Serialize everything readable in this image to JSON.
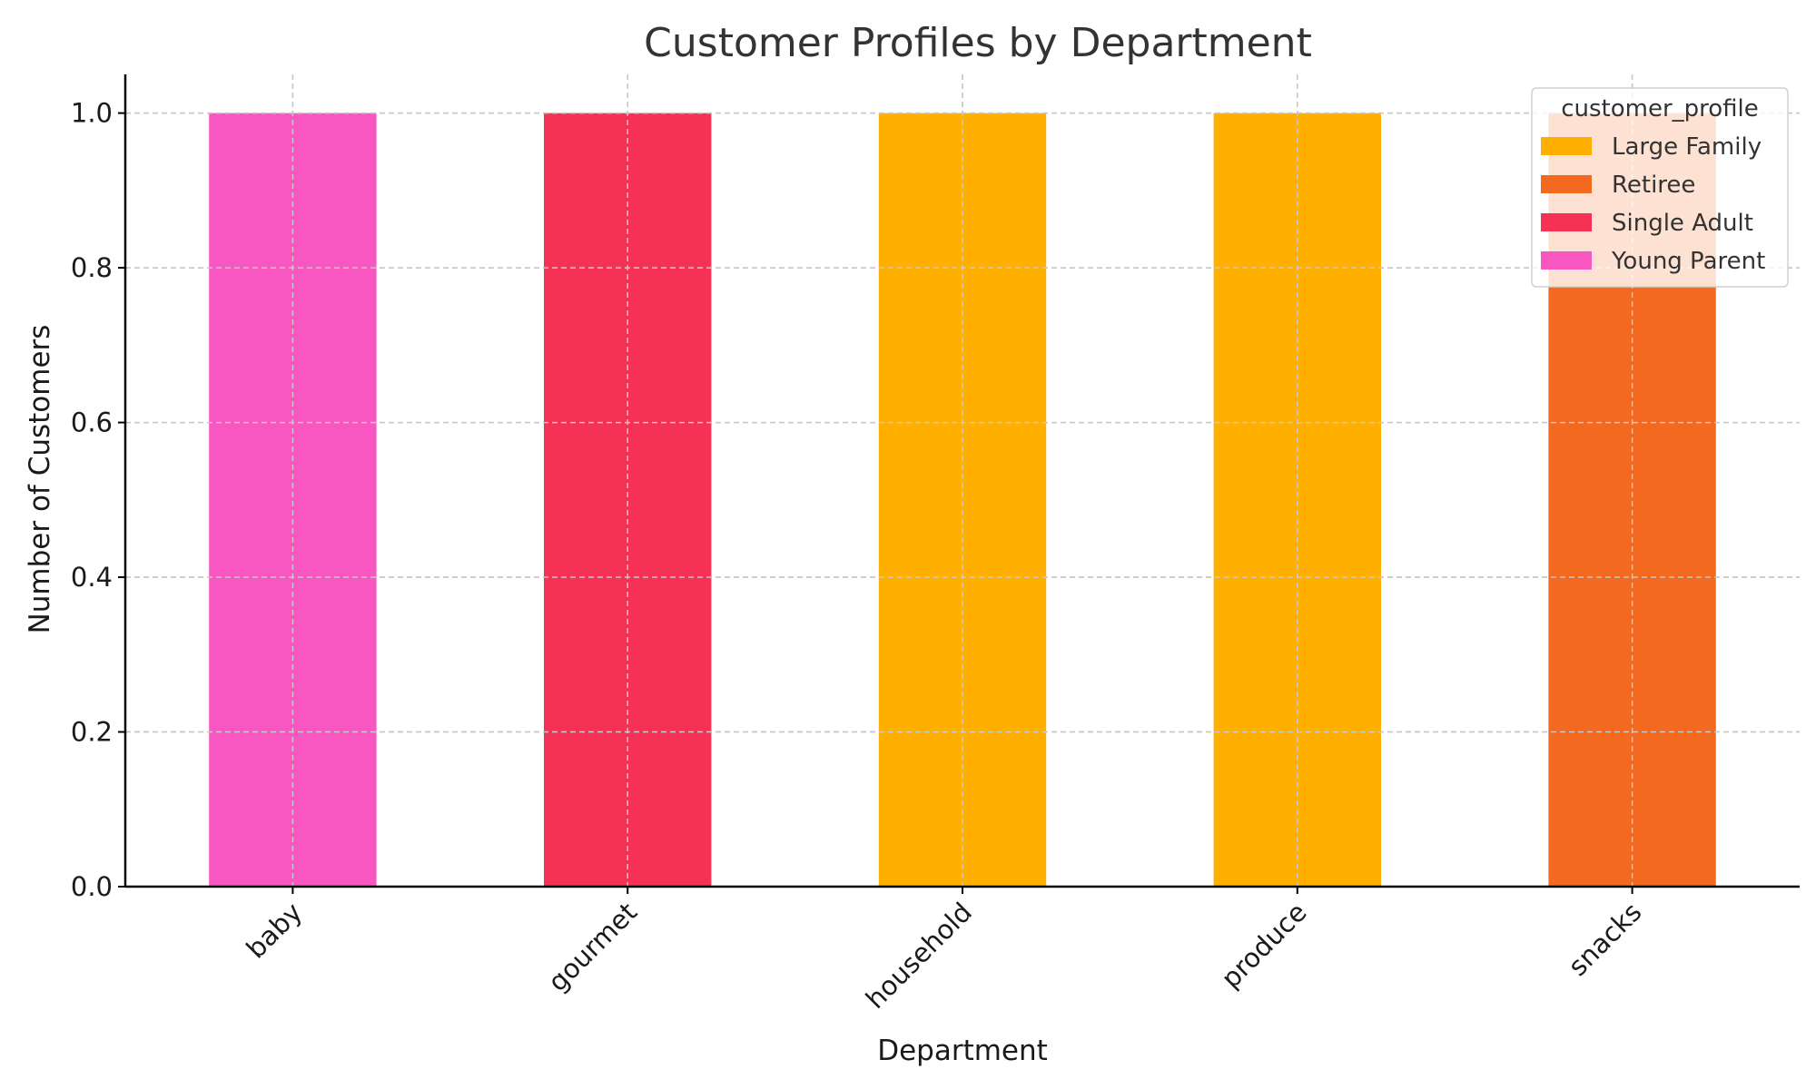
{
  "chart_data": {
    "type": "bar",
    "title": "Customer Profiles by Department",
    "xlabel": "Department",
    "ylabel": "Number of Customers",
    "categories": [
      "baby",
      "gourmet",
      "household",
      "produce",
      "snacks"
    ],
    "ylim": [
      0,
      1.05
    ],
    "yticks": [
      "0.0",
      "0.2",
      "0.4",
      "0.6",
      "0.8",
      "1.0"
    ],
    "grid": true,
    "stacked": true,
    "legend": {
      "title": "customer_profile",
      "placement": "top-right"
    },
    "series": [
      {
        "name": "Large Family",
        "color": "#FFAF00",
        "values": [
          0,
          0,
          1,
          1,
          0
        ]
      },
      {
        "name": "Retiree",
        "color": "#F46920",
        "values": [
          0,
          0,
          0,
          0,
          1
        ]
      },
      {
        "name": "Single Adult",
        "color": "#F53255",
        "values": [
          0,
          1,
          0,
          0,
          0
        ]
      },
      {
        "name": "Young Parent",
        "color": "#F857C1",
        "values": [
          1,
          0,
          0,
          0,
          0
        ]
      }
    ]
  }
}
